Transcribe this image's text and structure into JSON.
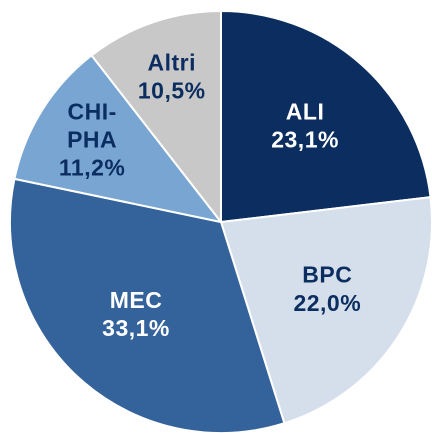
{
  "chart_data": {
    "type": "pie",
    "categories": [
      "ALI",
      "BPC",
      "MEC",
      "CHI-PHA",
      "Altri"
    ],
    "values": [
      23.1,
      22.0,
      33.1,
      11.2,
      10.5
    ],
    "value_labels": [
      "23,1%",
      "22,0%",
      "33,1%",
      "11,2%",
      "10,5%"
    ],
    "colors": [
      "#0b2d5f",
      "#d5dfeb",
      "#34639b",
      "#78a5d1",
      "#c8c8c8"
    ]
  }
}
